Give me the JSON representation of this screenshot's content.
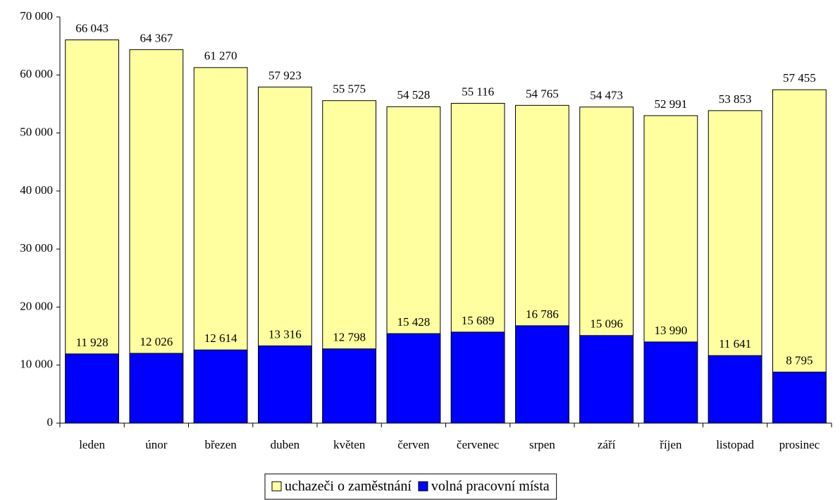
{
  "chart_data": {
    "type": "bar",
    "barmode": "overlay",
    "categories": [
      "leden",
      "únor",
      "březen",
      "duben",
      "květen",
      "červen",
      "červenec",
      "srpen",
      "září",
      "říjen",
      "listopad",
      "prosinec"
    ],
    "series": [
      {
        "name": "uchazeči o zaměstnání",
        "color": "#ffffa0",
        "values": [
          66043,
          64367,
          61270,
          57923,
          55575,
          54528,
          55116,
          54765,
          54473,
          52991,
          53853,
          57455
        ],
        "value_labels": [
          "66 043",
          "64 367",
          "61 270",
          "57 923",
          "55 575",
          "54 528",
          "55 116",
          "54 765",
          "54 473",
          "52 991",
          "53 853",
          "57 455"
        ]
      },
      {
        "name": "volná pracovní místa",
        "color": "#0000ff",
        "values": [
          11928,
          12026,
          12614,
          13316,
          12798,
          15428,
          15689,
          16786,
          15096,
          13990,
          11641,
          8795
        ],
        "value_labels": [
          "11 928",
          "12 026",
          "12 614",
          "13 316",
          "12 798",
          "15 428",
          "15 689",
          "16 786",
          "15 096",
          "13 990",
          "11 641",
          "8 795"
        ]
      }
    ],
    "ylim": [
      0,
      70000
    ],
    "yticks": [
      0,
      {
        "value": 10000,
        "label": "10 000"
      },
      {
        "value": 20000,
        "label": "20 000"
      },
      {
        "value": 30000,
        "label": "30 000"
      },
      {
        "value": 40000,
        "label": "40 000"
      },
      {
        "value": 50000,
        "label": "50 000"
      },
      {
        "value": 60000,
        "label": "60 000"
      },
      {
        "value": 70000,
        "label": "70 000"
      }
    ],
    "grid": false,
    "legend": "bottom"
  }
}
